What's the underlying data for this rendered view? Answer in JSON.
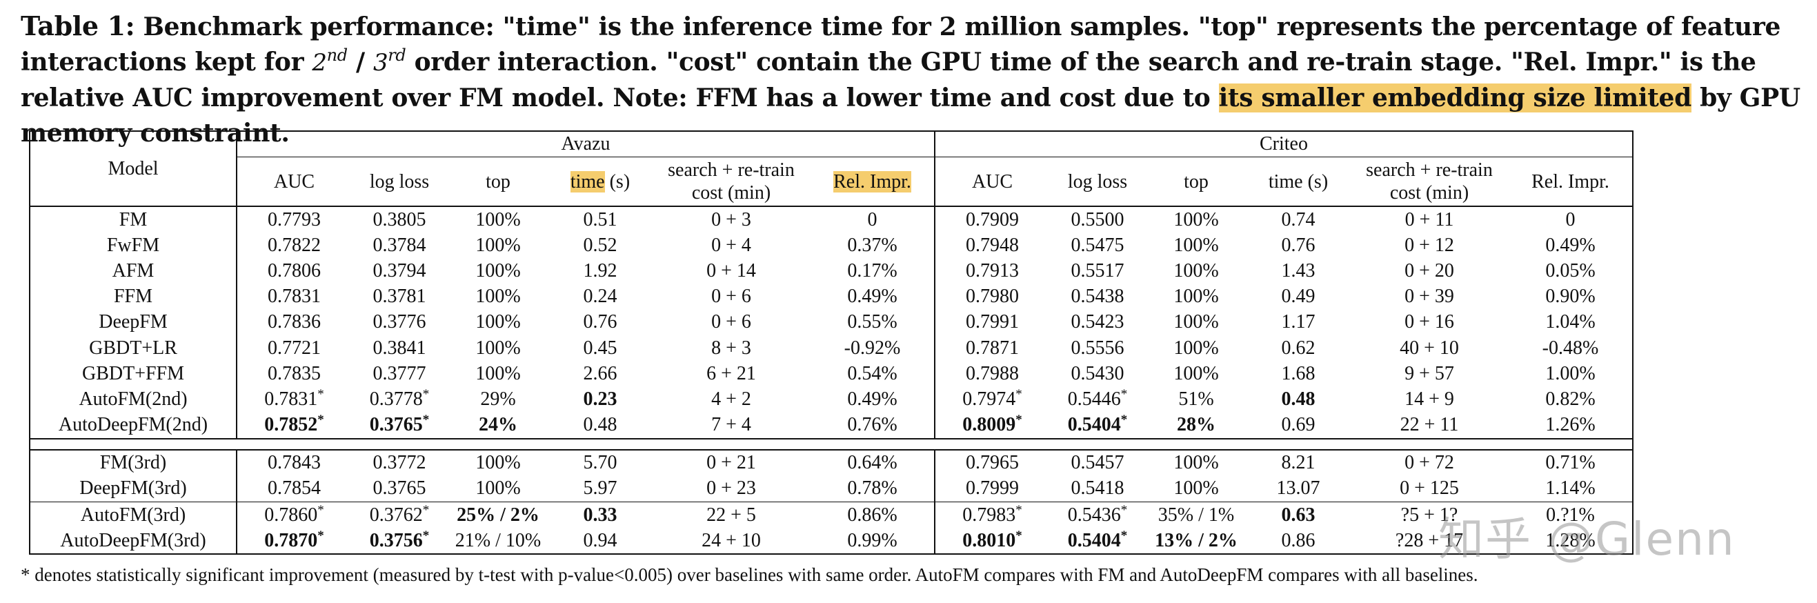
{
  "caption": {
    "label": "Table 1:",
    "part1": " Benchmark performance: \"time\" is the inference time for 2 million samples. \"top\" represents the percentage of feature interactions kept for ",
    "ord2_base": "2",
    "ord2_sup": "nd",
    "slash": " / ",
    "ord3_base": "3",
    "ord3_sup": "rd",
    "part2": " order interaction. \"cost\" contain the GPU time of the search and re-train stage. \"Rel. Impr.\" is the relative AUC improvement over FM model. Note: FFM has a lower time and cost due to ",
    "highlight": "its smaller embedding size limited",
    "part3": " by GPU memory constraint."
  },
  "table": {
    "model_header": "Model",
    "groups": [
      "Avazu",
      "Criteo"
    ],
    "columns": {
      "auc": "AUC",
      "logloss": "log loss",
      "top": "top",
      "time": "time",
      "time_unit": " (s)",
      "cost_line1": "search + re-train",
      "cost_line2": "cost (min)",
      "rel": "Rel. Impr."
    },
    "section1": [
      {
        "model": "FM",
        "a": [
          "0.7793",
          "0.3805",
          "100%",
          "0.51",
          "0 + 3",
          "0"
        ],
        "c": [
          "0.7909",
          "0.5500",
          "100%",
          "0.74",
          "0 + 11",
          "0"
        ]
      },
      {
        "model": "FwFM",
        "a": [
          "0.7822",
          "0.3784",
          "100%",
          "0.52",
          "0 + 4",
          "0.37%"
        ],
        "c": [
          "0.7948",
          "0.5475",
          "100%",
          "0.76",
          "0 + 12",
          "0.49%"
        ]
      },
      {
        "model": "AFM",
        "a": [
          "0.7806",
          "0.3794",
          "100%",
          "1.92",
          "0 + 14",
          "0.17%"
        ],
        "c": [
          "0.7913",
          "0.5517",
          "100%",
          "1.43",
          "0 + 20",
          "0.05%"
        ]
      },
      {
        "model": "FFM",
        "a": [
          "0.7831",
          "0.3781",
          "100%",
          "0.24",
          "0 + 6",
          "0.49%"
        ],
        "c": [
          "0.7980",
          "0.5438",
          "100%",
          "0.49",
          "0 + 39",
          "0.90%"
        ]
      },
      {
        "model": "DeepFM",
        "a": [
          "0.7836",
          "0.3776",
          "100%",
          "0.76",
          "0 + 6",
          "0.55%"
        ],
        "c": [
          "0.7991",
          "0.5423",
          "100%",
          "1.17",
          "0 + 16",
          "1.04%"
        ]
      },
      {
        "model": "GBDT+LR",
        "a": [
          "0.7721",
          "0.3841",
          "100%",
          "0.45",
          "8 + 3",
          "-0.92%"
        ],
        "c": [
          "0.7871",
          "0.5556",
          "100%",
          "0.62",
          "40 + 10",
          "-0.48%"
        ]
      },
      {
        "model": "GBDT+FFM",
        "a": [
          "0.7835",
          "0.3777",
          "100%",
          "2.66",
          "6 + 21",
          "0.54%"
        ],
        "c": [
          "0.7988",
          "0.5430",
          "100%",
          "1.68",
          "9 + 57",
          "1.00%"
        ]
      },
      {
        "model": "AutoFM(2nd)",
        "a": [
          "0.7831*",
          "0.3778*",
          "29%",
          "0.23",
          "4 + 2",
          "0.49%"
        ],
        "c": [
          "0.7974*",
          "0.5446*",
          "51%",
          "0.48",
          "14 + 9",
          "0.82%"
        ]
      },
      {
        "model": "AutoDeepFM(2nd)",
        "a": [
          "0.7852*",
          "0.3765*",
          "24%",
          "0.48",
          "7 + 4",
          "0.76%"
        ],
        "c": [
          "0.8009*",
          "0.5404*",
          "28%",
          "0.69",
          "22 + 11",
          "1.26%"
        ]
      }
    ],
    "section2a": [
      {
        "model": "FM(3rd)",
        "a": [
          "0.7843",
          "0.3772",
          "100%",
          "5.70",
          "0 + 21",
          "0.64%"
        ],
        "c": [
          "0.7965",
          "0.5457",
          "100%",
          "8.21",
          "0 + 72",
          "0.71%"
        ]
      },
      {
        "model": "DeepFM(3rd)",
        "a": [
          "0.7854",
          "0.3765",
          "100%",
          "5.97",
          "0 + 23",
          "0.78%"
        ],
        "c": [
          "0.7999",
          "0.5418",
          "100%",
          "13.07",
          "0 + 125",
          "1.14%"
        ]
      }
    ],
    "section2b": [
      {
        "model": "AutoFM(3rd)",
        "a": [
          "0.7860*",
          "0.3762*",
          "25% / 2%",
          "0.33",
          "22 + 5",
          "0.86%"
        ],
        "c": [
          "0.7983*",
          "0.5436*",
          "35% / 1%",
          "0.63",
          "?5 + 1?",
          "0.?1%"
        ]
      },
      {
        "model": "AutoDeepFM(3rd)",
        "a": [
          "0.7870*",
          "0.3756*",
          "21% / 10%",
          "0.94",
          "24 + 10",
          "0.99%"
        ],
        "c": [
          "0.8010*",
          "0.5404*",
          "13% / 2%",
          "0.86",
          "?28 + 17",
          "1.28%"
        ]
      }
    ]
  },
  "footnote": "* denotes statistically significant improvement (measured by t-test with p-value<0.005) over baselines with same order. AutoFM compares with FM and AutoDeepFM compares with all baselines.",
  "watermark": "知乎 @Glenn",
  "colors": {
    "highlight": "#f5cd6e",
    "text": "#111111"
  }
}
